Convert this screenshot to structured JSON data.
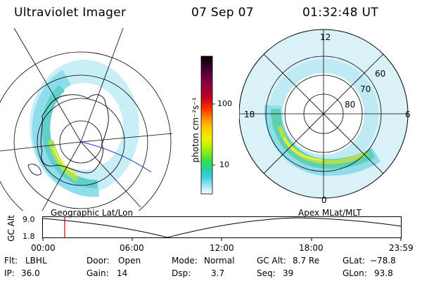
{
  "header": {
    "title": "Ultraviolet Imager",
    "date": "07 Sep 07",
    "time": "01:32:48 UT"
  },
  "left_panel": {
    "caption": "Geographic Lat/Lon"
  },
  "right_panel": {
    "caption": "Apex MLat/MLT",
    "mlt_labels": [
      "12",
      "18",
      "6",
      "0"
    ],
    "lat_labels": [
      "60",
      "70",
      "80"
    ]
  },
  "colorbar": {
    "unit_label": "photon cm⁻²s⁻¹",
    "ticks": [
      "100",
      "10"
    ],
    "colors": [
      "#000000",
      "#3a0030",
      "#8a0040",
      "#c00020",
      "#ff2000",
      "#ff8000",
      "#ffc000",
      "#f0f000",
      "#a0f000",
      "#40e040",
      "#20d0a0",
      "#40d0e0",
      "#90e0f0",
      "#d0f0f8",
      "#ffffff"
    ]
  },
  "timeline": {
    "y_label": "GC Alt",
    "y_ticks": [
      "9.0",
      "1.8"
    ],
    "x_ticks": [
      "00:00",
      "06:00",
      "12:00",
      "18:00",
      "23:59"
    ],
    "marker_color": "#cc0000"
  },
  "status": {
    "flt_label": "Flt:",
    "flt_value": "LBHL",
    "ip_label": "IP:",
    "ip_value": "36.0",
    "door_label": "Door:",
    "door_value": "Open",
    "gain_label": "Gain:",
    "gain_value": "14",
    "mode_label": "Mode:",
    "mode_value": "Normal",
    "dsp_label": "Dsp:",
    "dsp_value": "3.7",
    "gcalt_label": "GC Alt:",
    "gcalt_value": "8.7 Re",
    "seq_label": "Seq:",
    "seq_value": "39",
    "glat_label": "GLat:",
    "glat_value": "−78.8",
    "glon_label": "GLon:",
    "glon_value": "93.8"
  }
}
